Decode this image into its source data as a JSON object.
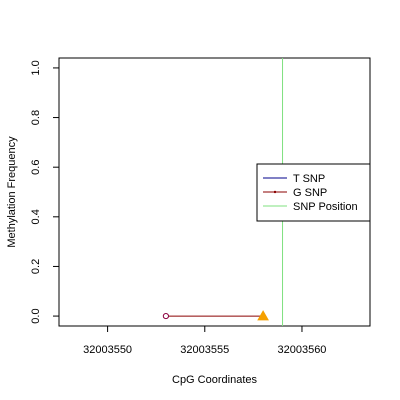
{
  "chart_data": {
    "type": "line",
    "title": "",
    "xlabel": "CpG Coordinates",
    "ylabel": "Methylation Frequency",
    "xlim": [
      32003547.5,
      32003563.5
    ],
    "ylim": [
      -0.04,
      1.04
    ],
    "x_ticks": [
      32003550,
      32003555,
      32003560
    ],
    "x_tick_labels": [
      "32003550",
      "32003555",
      "32003560"
    ],
    "y_ticks": [
      0.0,
      0.2,
      0.4,
      0.6,
      0.8,
      1.0
    ],
    "y_tick_labels": [
      "0.0",
      "0.2",
      "0.4",
      "0.6",
      "0.8",
      "1.0"
    ],
    "grid": false,
    "legend_position": "right",
    "series": [
      {
        "name": "T SNP",
        "color": "#00008b",
        "x": [],
        "y": []
      },
      {
        "name": "G SNP",
        "color": "#8b0000",
        "x": [
          32003553,
          32003558
        ],
        "y": [
          0.0,
          0.0
        ]
      }
    ],
    "markers": [
      {
        "shape": "circle",
        "color": "#8b0040",
        "x": 32003553,
        "y": 0.0
      },
      {
        "shape": "triangle",
        "color": "#f5a000",
        "x": 32003558,
        "y": 0.0
      }
    ],
    "snp_position": {
      "name": "SNP Position",
      "color": "#7fe07f",
      "x": 32003559
    },
    "legend": [
      {
        "label": "T SNP",
        "color": "#00008b"
      },
      {
        "label": "G SNP",
        "color": "#8b0000"
      },
      {
        "label": "SNP Position",
        "color": "#7fe07f"
      }
    ]
  }
}
